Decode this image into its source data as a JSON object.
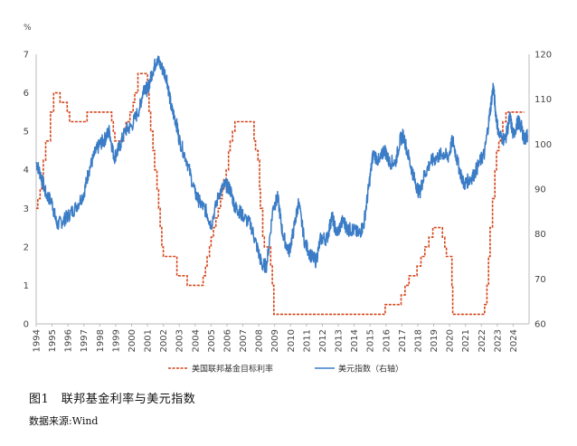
{
  "caption": "图1　联邦基金利率与美元指数",
  "source": "数据来源:Wind",
  "chart_data": {
    "type": "line",
    "title": "",
    "xlabel": "",
    "ylabel_left": "%",
    "ylabel_right": "",
    "xlim": [
      1994,
      2025
    ],
    "ylim_left": [
      0,
      7
    ],
    "ylim_right": [
      60,
      120
    ],
    "x_ticks": [
      "1994",
      "1995",
      "1996",
      "1997",
      "1998",
      "1999",
      "2000",
      "2001",
      "2002",
      "2003",
      "2004",
      "2005",
      "2006",
      "2007",
      "2008",
      "2009",
      "2010",
      "2011",
      "2012",
      "2013",
      "2014",
      "2015",
      "2016",
      "2017",
      "2018",
      "2019",
      "2020",
      "2021",
      "2022",
      "2023",
      "2024"
    ],
    "y_ticks_left": [
      "0",
      "1",
      "2",
      "3",
      "4",
      "5",
      "6",
      "7"
    ],
    "y_ticks_right": [
      "60",
      "70",
      "80",
      "90",
      "100",
      "110",
      "120"
    ],
    "legend_position": "bottom",
    "series": [
      {
        "name": "美国联邦基金目标利率",
        "axis": "left",
        "color": "#d6451b",
        "style": "dashed-step",
        "points": [
          [
            1994.0,
            3.0
          ],
          [
            1994.1,
            3.25
          ],
          [
            1994.25,
            3.5
          ],
          [
            1994.35,
            3.75
          ],
          [
            1994.45,
            4.25
          ],
          [
            1994.6,
            4.75
          ],
          [
            1994.9,
            5.5
          ],
          [
            1995.1,
            6.0
          ],
          [
            1995.5,
            5.75
          ],
          [
            1995.95,
            5.5
          ],
          [
            1996.1,
            5.25
          ],
          [
            1997.2,
            5.5
          ],
          [
            1998.75,
            5.25
          ],
          [
            1998.85,
            5.0
          ],
          [
            1998.95,
            4.75
          ],
          [
            1999.5,
            5.0
          ],
          [
            1999.65,
            5.25
          ],
          [
            1999.9,
            5.5
          ],
          [
            2000.1,
            5.75
          ],
          [
            2000.2,
            6.0
          ],
          [
            2000.4,
            6.5
          ],
          [
            2001.0,
            6.0
          ],
          [
            2001.1,
            5.5
          ],
          [
            2001.2,
            5.0
          ],
          [
            2001.35,
            4.5
          ],
          [
            2001.45,
            4.0
          ],
          [
            2001.6,
            3.5
          ],
          [
            2001.7,
            3.0
          ],
          [
            2001.8,
            2.5
          ],
          [
            2001.9,
            2.0
          ],
          [
            2002.0,
            1.75
          ],
          [
            2002.85,
            1.25
          ],
          [
            2003.5,
            1.0
          ],
          [
            2004.5,
            1.25
          ],
          [
            2004.65,
            1.5
          ],
          [
            2004.75,
            1.75
          ],
          [
            2004.9,
            2.0
          ],
          [
            2005.0,
            2.25
          ],
          [
            2005.15,
            2.5
          ],
          [
            2005.3,
            2.75
          ],
          [
            2005.45,
            3.0
          ],
          [
            2005.6,
            3.25
          ],
          [
            2005.7,
            3.5
          ],
          [
            2005.8,
            3.75
          ],
          [
            2005.95,
            4.0
          ],
          [
            2006.1,
            4.5
          ],
          [
            2006.2,
            4.75
          ],
          [
            2006.35,
            5.0
          ],
          [
            2006.5,
            5.25
          ],
          [
            2007.7,
            4.75
          ],
          [
            2007.8,
            4.5
          ],
          [
            2007.95,
            4.25
          ],
          [
            2008.05,
            3.5
          ],
          [
            2008.1,
            3.0
          ],
          [
            2008.25,
            2.25
          ],
          [
            2008.35,
            2.0
          ],
          [
            2008.75,
            1.5
          ],
          [
            2008.85,
            1.0
          ],
          [
            2008.95,
            0.25
          ],
          [
            2015.95,
            0.5
          ],
          [
            2016.95,
            0.75
          ],
          [
            2017.2,
            1.0
          ],
          [
            2017.45,
            1.25
          ],
          [
            2017.95,
            1.5
          ],
          [
            2018.2,
            1.75
          ],
          [
            2018.45,
            2.0
          ],
          [
            2018.7,
            2.25
          ],
          [
            2018.95,
            2.5
          ],
          [
            2019.55,
            2.25
          ],
          [
            2019.7,
            2.0
          ],
          [
            2019.8,
            1.75
          ],
          [
            2020.15,
            1.0
          ],
          [
            2020.2,
            0.25
          ],
          [
            2022.2,
            0.5
          ],
          [
            2022.35,
            1.0
          ],
          [
            2022.45,
            1.75
          ],
          [
            2022.55,
            2.5
          ],
          [
            2022.7,
            3.25
          ],
          [
            2022.85,
            4.0
          ],
          [
            2022.95,
            4.5
          ],
          [
            2023.1,
            4.75
          ],
          [
            2023.2,
            5.0
          ],
          [
            2023.35,
            5.25
          ],
          [
            2023.55,
            5.5
          ],
          [
            2024.7,
            5.5
          ]
        ]
      },
      {
        "name": "美元指数（右轴）",
        "axis": "right",
        "color": "#3a7cc6",
        "style": "solid",
        "points": [
          [
            1994.0,
            96
          ],
          [
            1994.3,
            93
          ],
          [
            1994.6,
            89
          ],
          [
            1995.0,
            87
          ],
          [
            1995.3,
            82
          ],
          [
            1995.7,
            83
          ],
          [
            1996.0,
            84
          ],
          [
            1996.5,
            86
          ],
          [
            1997.0,
            89
          ],
          [
            1997.3,
            94
          ],
          [
            1997.7,
            98
          ],
          [
            1998.0,
            100
          ],
          [
            1998.3,
            101
          ],
          [
            1998.6,
            103
          ],
          [
            1998.9,
            97
          ],
          [
            1999.2,
            99
          ],
          [
            1999.6,
            103
          ],
          [
            2000.0,
            104
          ],
          [
            2000.5,
            108
          ],
          [
            2000.8,
            113
          ],
          [
            2001.0,
            112
          ],
          [
            2001.3,
            116
          ],
          [
            2001.6,
            119
          ],
          [
            2001.9,
            117
          ],
          [
            2002.2,
            115
          ],
          [
            2002.5,
            108
          ],
          [
            2002.8,
            105
          ],
          [
            2003.0,
            101
          ],
          [
            2003.5,
            96
          ],
          [
            2004.0,
            89
          ],
          [
            2004.3,
            87
          ],
          [
            2004.7,
            85
          ],
          [
            2005.0,
            82
          ],
          [
            2005.5,
            89
          ],
          [
            2005.9,
            91
          ],
          [
            2006.2,
            90
          ],
          [
            2006.5,
            86
          ],
          [
            2006.8,
            85
          ],
          [
            2007.0,
            84
          ],
          [
            2007.5,
            82
          ],
          [
            2007.9,
            77
          ],
          [
            2008.2,
            73
          ],
          [
            2008.5,
            73
          ],
          [
            2008.9,
            86
          ],
          [
            2009.2,
            88
          ],
          [
            2009.5,
            80
          ],
          [
            2009.9,
            76
          ],
          [
            2010.2,
            81
          ],
          [
            2010.5,
            87
          ],
          [
            2010.9,
            78
          ],
          [
            2011.3,
            75
          ],
          [
            2011.6,
            74
          ],
          [
            2011.9,
            79
          ],
          [
            2012.3,
            79
          ],
          [
            2012.6,
            84
          ],
          [
            2012.9,
            80
          ],
          [
            2013.3,
            83
          ],
          [
            2013.6,
            81
          ],
          [
            2013.9,
            81
          ],
          [
            2014.3,
            80
          ],
          [
            2014.6,
            82
          ],
          [
            2014.9,
            90
          ],
          [
            2015.2,
            98
          ],
          [
            2015.6,
            96
          ],
          [
            2015.9,
            99
          ],
          [
            2016.2,
            96
          ],
          [
            2016.6,
            96
          ],
          [
            2016.9,
            101
          ],
          [
            2017.1,
            102
          ],
          [
            2017.5,
            96
          ],
          [
            2017.8,
            92
          ],
          [
            2018.1,
            89
          ],
          [
            2018.4,
            93
          ],
          [
            2018.8,
            96
          ],
          [
            2019.2,
            97
          ],
          [
            2019.6,
            98
          ],
          [
            2019.9,
            97
          ],
          [
            2020.2,
            101
          ],
          [
            2020.5,
            96
          ],
          [
            2020.9,
            91
          ],
          [
            2021.2,
            92
          ],
          [
            2021.5,
            93
          ],
          [
            2021.9,
            96
          ],
          [
            2022.2,
            98
          ],
          [
            2022.5,
            106
          ],
          [
            2022.75,
            113
          ],
          [
            2022.9,
            107
          ],
          [
            2023.1,
            102
          ],
          [
            2023.5,
            101
          ],
          [
            2023.8,
            106
          ],
          [
            2024.0,
            102
          ],
          [
            2024.3,
            105
          ],
          [
            2024.5,
            104
          ],
          [
            2024.7,
            101
          ],
          [
            2024.9,
            102
          ]
        ]
      }
    ]
  }
}
